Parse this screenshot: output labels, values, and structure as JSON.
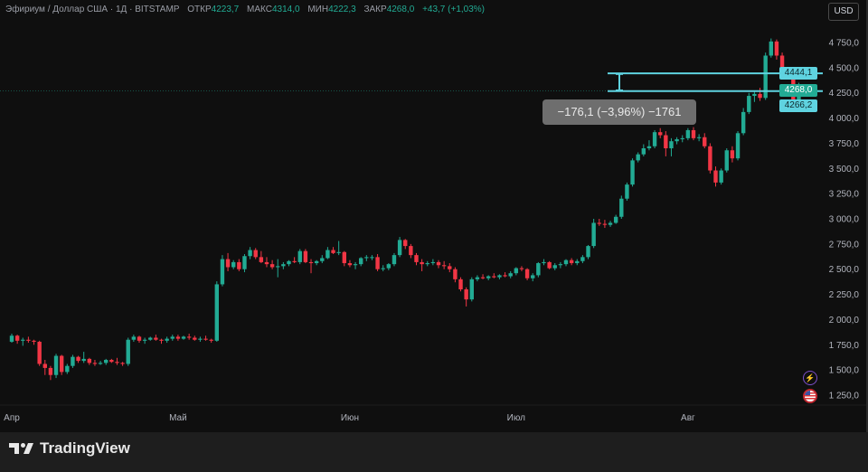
{
  "header": {
    "symbol": "Эфириум / Доллар США · 1Д · BITSTAMP",
    "open_label": "ОТКР",
    "open": "4223,7",
    "high_label": "МАКС",
    "high": "4314,0",
    "low_label": "МИН",
    "low": "4222,3",
    "close_label": "ЗАКР",
    "close": "4268,0",
    "change": "+43,7 (+1,03%)"
  },
  "currency_button": "USD",
  "measure": {
    "label": "−176,1 (−3,96%) −1761",
    "top_price": 4444.1,
    "bottom_price": 4268.0
  },
  "price_labels": {
    "upper": "4444,1",
    "last": "4268,0",
    "lower": "4266,2"
  },
  "icons": {
    "events": "lightning-icon",
    "country": "us-flag-icon"
  },
  "footer": {
    "brand": "TradingView"
  },
  "colors": {
    "up": "#22ab94",
    "down": "#f23645",
    "measure": "#5fd3e0",
    "background": "#0f0f0f"
  },
  "chart_data": {
    "type": "candlestick",
    "title": "",
    "x_tick_labels": [
      "Апр",
      "Май",
      "Июн",
      "Июл",
      "Авг"
    ],
    "y_tick_labels": [
      "1 250,0",
      "1 500,0",
      "1 750,0",
      "2 000,0",
      "2 250,0",
      "2 500,0",
      "2 750,0",
      "3 000,0",
      "3 250,0",
      "3 500,0",
      "3 750,0",
      "4 000,0",
      "4 250,0",
      "4 500,0",
      "4 750,0"
    ],
    "y_ticks": [
      1250,
      1500,
      1750,
      2000,
      2250,
      2500,
      2750,
      3000,
      3250,
      3500,
      3750,
      4000,
      4250,
      4500,
      4750
    ],
    "ylim": [
      1150,
      4950
    ],
    "x_start": "Apr 1",
    "x_end": "Aug 22",
    "grid": false,
    "ohlc": [
      [
        1780,
        1860,
        1770,
        1840
      ],
      [
        1840,
        1850,
        1760,
        1790
      ],
      [
        1790,
        1820,
        1740,
        1800
      ],
      [
        1800,
        1830,
        1770,
        1790
      ],
      [
        1790,
        1800,
        1750,
        1780
      ],
      [
        1780,
        1790,
        1540,
        1560
      ],
      [
        1560,
        1600,
        1450,
        1520
      ],
      [
        1520,
        1540,
        1400,
        1450
      ],
      [
        1450,
        1660,
        1420,
        1640
      ],
      [
        1640,
        1650,
        1450,
        1480
      ],
      [
        1480,
        1560,
        1460,
        1540
      ],
      [
        1540,
        1650,
        1520,
        1630
      ],
      [
        1630,
        1640,
        1570,
        1590
      ],
      [
        1590,
        1680,
        1570,
        1610
      ],
      [
        1610,
        1620,
        1550,
        1570
      ],
      [
        1570,
        1600,
        1540,
        1560
      ],
      [
        1560,
        1590,
        1550,
        1570
      ],
      [
        1570,
        1610,
        1550,
        1600
      ],
      [
        1600,
        1610,
        1570,
        1580
      ],
      [
        1580,
        1620,
        1550,
        1570
      ],
      [
        1570,
        1580,
        1540,
        1560
      ],
      [
        1560,
        1820,
        1540,
        1800
      ],
      [
        1800,
        1850,
        1780,
        1830
      ],
      [
        1830,
        1840,
        1770,
        1790
      ],
      [
        1790,
        1820,
        1760,
        1800
      ],
      [
        1800,
        1830,
        1790,
        1820
      ],
      [
        1820,
        1850,
        1790,
        1800
      ],
      [
        1800,
        1810,
        1760,
        1790
      ],
      [
        1790,
        1830,
        1770,
        1810
      ],
      [
        1810,
        1850,
        1790,
        1830
      ],
      [
        1830,
        1850,
        1790,
        1810
      ],
      [
        1810,
        1840,
        1800,
        1830
      ],
      [
        1830,
        1860,
        1800,
        1820
      ],
      [
        1820,
        1840,
        1790,
        1800
      ],
      [
        1800,
        1830,
        1780,
        1810
      ],
      [
        1810,
        1840,
        1790,
        1800
      ],
      [
        1800,
        1810,
        1770,
        1790
      ],
      [
        1790,
        2380,
        1780,
        2350
      ],
      [
        2350,
        2640,
        2330,
        2600
      ],
      [
        2600,
        2660,
        2480,
        2520
      ],
      [
        2520,
        2590,
        2500,
        2570
      ],
      [
        2570,
        2600,
        2480,
        2500
      ],
      [
        2500,
        2650,
        2470,
        2630
      ],
      [
        2630,
        2720,
        2600,
        2690
      ],
      [
        2690,
        2710,
        2600,
        2620
      ],
      [
        2620,
        2680,
        2560,
        2570
      ],
      [
        2570,
        2620,
        2520,
        2550
      ],
      [
        2550,
        2590,
        2500,
        2520
      ],
      [
        2520,
        2600,
        2420,
        2530
      ],
      [
        2530,
        2570,
        2500,
        2550
      ],
      [
        2550,
        2590,
        2530,
        2580
      ],
      [
        2580,
        2620,
        2560,
        2570
      ],
      [
        2570,
        2700,
        2550,
        2680
      ],
      [
        2680,
        2700,
        2560,
        2570
      ],
      [
        2570,
        2600,
        2460,
        2560
      ],
      [
        2560,
        2590,
        2540,
        2580
      ],
      [
        2580,
        2640,
        2560,
        2610
      ],
      [
        2610,
        2720,
        2600,
        2690
      ],
      [
        2690,
        2720,
        2650,
        2660
      ],
      [
        2660,
        2780,
        2640,
        2670
      ],
      [
        2670,
        2680,
        2530,
        2560
      ],
      [
        2560,
        2590,
        2520,
        2540
      ],
      [
        2540,
        2570,
        2500,
        2550
      ],
      [
        2550,
        2620,
        2530,
        2610
      ],
      [
        2610,
        2640,
        2580,
        2620
      ],
      [
        2620,
        2640,
        2590,
        2620
      ],
      [
        2620,
        2650,
        2480,
        2500
      ],
      [
        2500,
        2540,
        2480,
        2510
      ],
      [
        2510,
        2560,
        2490,
        2550
      ],
      [
        2550,
        2660,
        2530,
        2640
      ],
      [
        2640,
        2820,
        2620,
        2790
      ],
      [
        2790,
        2800,
        2700,
        2730
      ],
      [
        2730,
        2750,
        2610,
        2640
      ],
      [
        2640,
        2660,
        2540,
        2570
      ],
      [
        2570,
        2600,
        2480,
        2550
      ],
      [
        2550,
        2580,
        2530,
        2560
      ],
      [
        2560,
        2600,
        2540,
        2570
      ],
      [
        2570,
        2590,
        2510,
        2540
      ],
      [
        2540,
        2580,
        2500,
        2530
      ],
      [
        2530,
        2560,
        2470,
        2500
      ],
      [
        2500,
        2520,
        2370,
        2400
      ],
      [
        2400,
        2420,
        2280,
        2300
      ],
      [
        2300,
        2320,
        2130,
        2200
      ],
      [
        2200,
        2420,
        2180,
        2400
      ],
      [
        2400,
        2440,
        2380,
        2420
      ],
      [
        2420,
        2450,
        2400,
        2410
      ],
      [
        2410,
        2440,
        2390,
        2430
      ],
      [
        2430,
        2460,
        2410,
        2420
      ],
      [
        2420,
        2450,
        2400,
        2440
      ],
      [
        2440,
        2470,
        2420,
        2430
      ],
      [
        2430,
        2480,
        2410,
        2460
      ],
      [
        2460,
        2520,
        2440,
        2510
      ],
      [
        2510,
        2530,
        2480,
        2500
      ],
      [
        2500,
        2510,
        2390,
        2410
      ],
      [
        2410,
        2460,
        2380,
        2440
      ],
      [
        2440,
        2570,
        2420,
        2560
      ],
      [
        2560,
        2600,
        2540,
        2570
      ],
      [
        2570,
        2580,
        2500,
        2510
      ],
      [
        2510,
        2560,
        2490,
        2540
      ],
      [
        2540,
        2570,
        2510,
        2550
      ],
      [
        2550,
        2600,
        2530,
        2590
      ],
      [
        2590,
        2610,
        2540,
        2560
      ],
      [
        2560,
        2600,
        2540,
        2580
      ],
      [
        2580,
        2640,
        2560,
        2620
      ],
      [
        2620,
        2740,
        2600,
        2730
      ],
      [
        2730,
        3000,
        2710,
        2960
      ],
      [
        2960,
        3000,
        2930,
        2950
      ],
      [
        2950,
        2990,
        2910,
        2940
      ],
      [
        2940,
        2980,
        2920,
        2960
      ],
      [
        2960,
        3040,
        2950,
        3020
      ],
      [
        3020,
        3230,
        3000,
        3200
      ],
      [
        3200,
        3360,
        3180,
        3340
      ],
      [
        3340,
        3600,
        3320,
        3580
      ],
      [
        3580,
        3660,
        3560,
        3640
      ],
      [
        3640,
        3740,
        3620,
        3700
      ],
      [
        3700,
        3780,
        3680,
        3720
      ],
      [
        3720,
        3880,
        3700,
        3860
      ],
      [
        3860,
        3900,
        3800,
        3830
      ],
      [
        3830,
        3870,
        3620,
        3700
      ],
      [
        3700,
        3800,
        3620,
        3770
      ],
      [
        3770,
        3810,
        3740,
        3790
      ],
      [
        3790,
        3830,
        3760,
        3800
      ],
      [
        3800,
        3900,
        3780,
        3880
      ],
      [
        3880,
        3910,
        3780,
        3800
      ],
      [
        3800,
        3840,
        3770,
        3810
      ],
      [
        3810,
        3850,
        3700,
        3720
      ],
      [
        3720,
        3750,
        3450,
        3480
      ],
      [
        3480,
        3520,
        3320,
        3360
      ],
      [
        3360,
        3500,
        3340,
        3480
      ],
      [
        3480,
        3700,
        3460,
        3680
      ],
      [
        3680,
        3720,
        3560,
        3600
      ],
      [
        3600,
        3870,
        3580,
        3850
      ],
      [
        3850,
        4100,
        3830,
        4060
      ],
      [
        4060,
        4250,
        4040,
        4220
      ],
      [
        4220,
        4260,
        4160,
        4240
      ],
      [
        4240,
        4300,
        4170,
        4200
      ],
      [
        4200,
        4650,
        4180,
        4620
      ],
      [
        4620,
        4790,
        4600,
        4760
      ],
      [
        4760,
        4780,
        4580,
        4620
      ],
      [
        4620,
        4650,
        4400,
        4440
      ],
      [
        4440,
        4480,
        4400,
        4460
      ],
      [
        4460,
        4470,
        4060,
        4080
      ],
      [
        4080,
        4350,
        4060,
        4224.3
      ],
      [
        4223.7,
        4314,
        4222.3,
        4268
      ]
    ]
  }
}
